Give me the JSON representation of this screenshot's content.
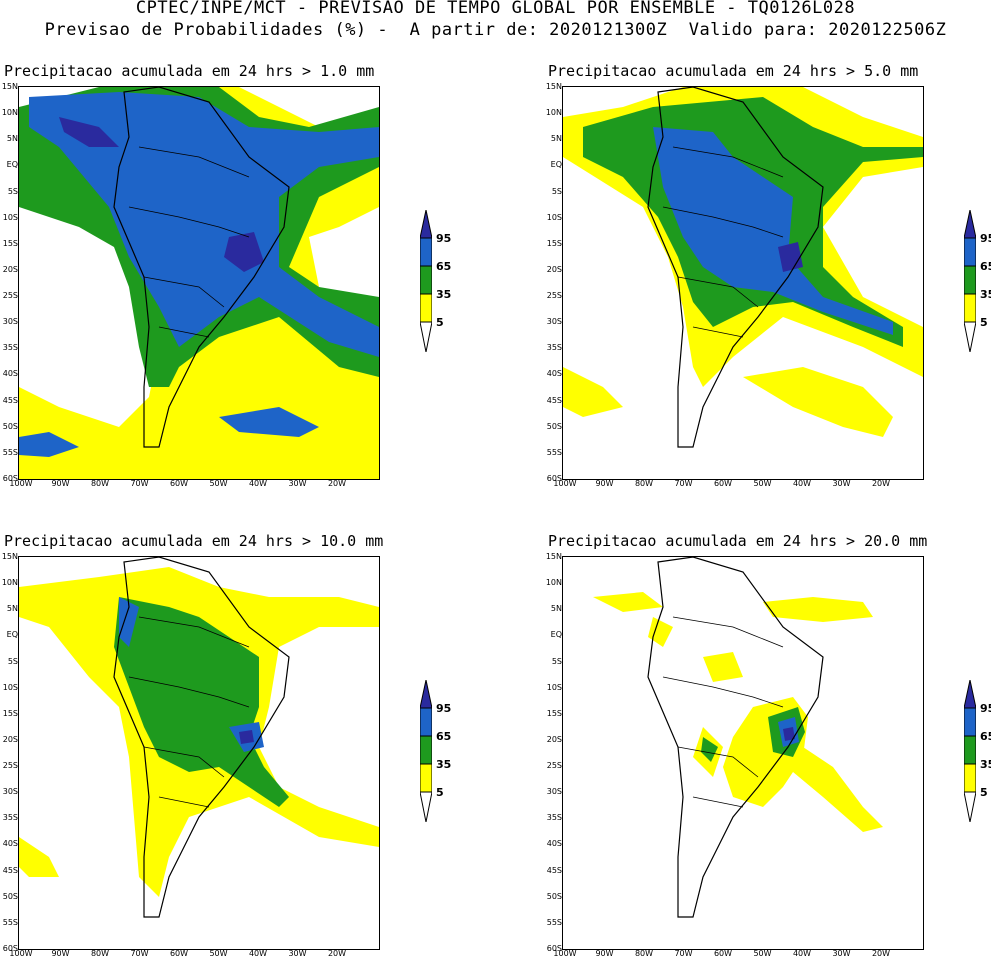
{
  "header": {
    "line1": "CPTEC/INPE/MCT - PREVISAO DE TEMPO GLOBAL POR ENSEMBLE - TQ0126L028",
    "line2": "Previsao de Probabilidades (%) -  A partir de: 2020121300Z  Valido para: 2020122506Z"
  },
  "panels": [
    {
      "title": "Precipitacao acumulada em 24 hrs > 1.0 mm"
    },
    {
      "title": "Precipitacao acumulada em 24 hrs > 5.0 mm"
    },
    {
      "title": "Precipitacao acumulada em 24 hrs > 10.0 mm"
    },
    {
      "title": "Precipitacao acumulada em 24 hrs > 20.0 mm"
    }
  ],
  "axes": {
    "lat_labels": [
      "15N",
      "10N",
      "5N",
      "EQ",
      "5S",
      "10S",
      "15S",
      "20S",
      "25S",
      "30S",
      "35S",
      "40S",
      "45S",
      "50S",
      "55S",
      "60S"
    ],
    "lon_labels": [
      "100W",
      "90W",
      "80W",
      "70W",
      "60W",
      "50W",
      "40W",
      "30W",
      "20W"
    ]
  },
  "colorbar": {
    "labels": [
      "95",
      "65",
      "35",
      "5"
    ],
    "colors": {
      "c5": "#ffff00",
      "c35": "#1e9a1e",
      "c65": "#1e64c8",
      "c95": "#2a2a9e"
    }
  },
  "map_data": {
    "projection": "lat-lon",
    "domain": {
      "lon": [
        -100,
        -15
      ],
      "lat": [
        -60,
        15
      ]
    },
    "probability_classes_percent": [
      5,
      35,
      65,
      95
    ]
  }
}
